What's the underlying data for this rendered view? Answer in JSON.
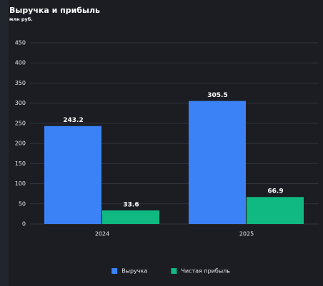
{
  "chart_data": {
    "type": "bar",
    "title": "Выручка и прибыль",
    "subtitle": "млн руб.",
    "categories": [
      "2024",
      "2025"
    ],
    "series": [
      {
        "name": "Выручка",
        "color": "#3b82f6",
        "values": [
          243.2,
          305.5
        ]
      },
      {
        "name": "Чистая прибыль",
        "color": "#10b981",
        "values": [
          33.6,
          66.9
        ]
      }
    ],
    "ylim": [
      0,
      450
    ],
    "yticks": [
      0,
      50,
      100,
      150,
      200,
      250,
      300,
      350,
      400,
      450
    ],
    "grid": true,
    "legend": "bottom"
  }
}
